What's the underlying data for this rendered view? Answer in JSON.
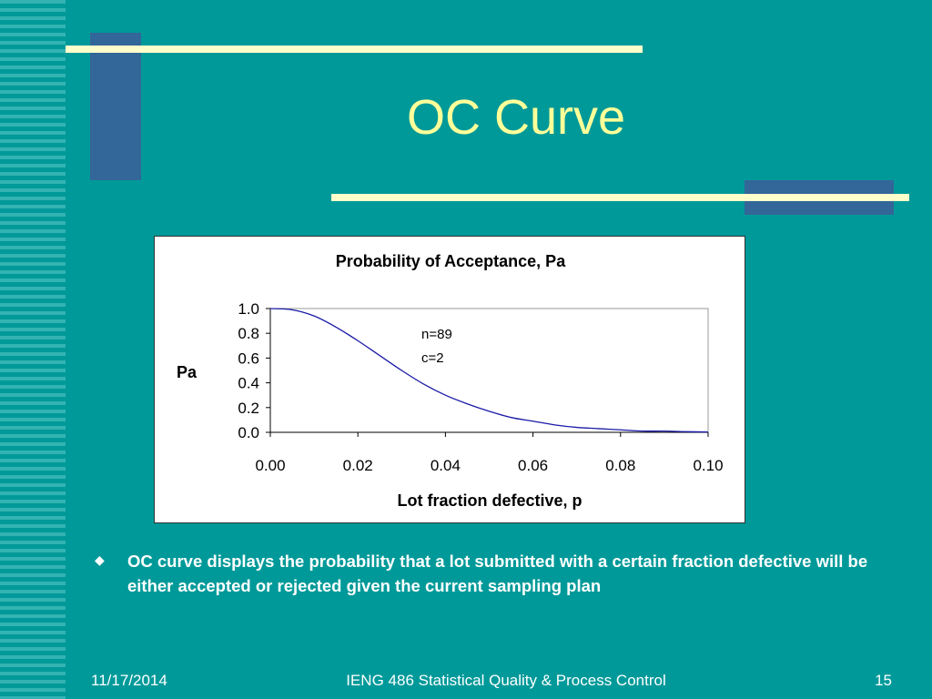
{
  "slide": {
    "title": "OC Curve",
    "bullet": "OC curve displays the probability that a lot submitted with a certain fraction defective will be either accepted or rejected given the current sampling plan",
    "bullet_icon": "diamond-bullet-icon"
  },
  "footer": {
    "date": "11/17/2014",
    "course": "IENG 486 Statistical Quality & Process Control",
    "page": "15"
  },
  "colors": {
    "background": "#009999",
    "title": "#ffff99",
    "accent_bar": "#ffffcc",
    "block": "#336699",
    "curve": "#1a1aa6"
  },
  "chart_data": {
    "type": "line",
    "title": "Probability of Acceptance, Pa",
    "xlabel": "Lot fraction defective, p",
    "ylabel": "Pa",
    "xlim": [
      0,
      0.1
    ],
    "ylim": [
      0,
      1
    ],
    "x_ticks": [
      "0.00",
      "0.02",
      "0.04",
      "0.06",
      "0.08",
      "0.10"
    ],
    "y_ticks": [
      "0.0",
      "0.2",
      "0.4",
      "0.6",
      "0.8",
      "1.0"
    ],
    "annotations": [
      "n=89",
      "c=2"
    ],
    "grid": false,
    "x": [
      0,
      0.005,
      0.01,
      0.015,
      0.02,
      0.025,
      0.03,
      0.035,
      0.04,
      0.045,
      0.05,
      0.055,
      0.06,
      0.065,
      0.07,
      0.075,
      0.08,
      0.085,
      0.09,
      0.095,
      0.1
    ],
    "values": [
      1.0,
      0.99,
      0.94,
      0.85,
      0.74,
      0.62,
      0.5,
      0.39,
      0.3,
      0.23,
      0.17,
      0.12,
      0.09,
      0.06,
      0.04,
      0.03,
      0.02,
      0.01,
      0.01,
      0.005,
      0.003
    ]
  }
}
